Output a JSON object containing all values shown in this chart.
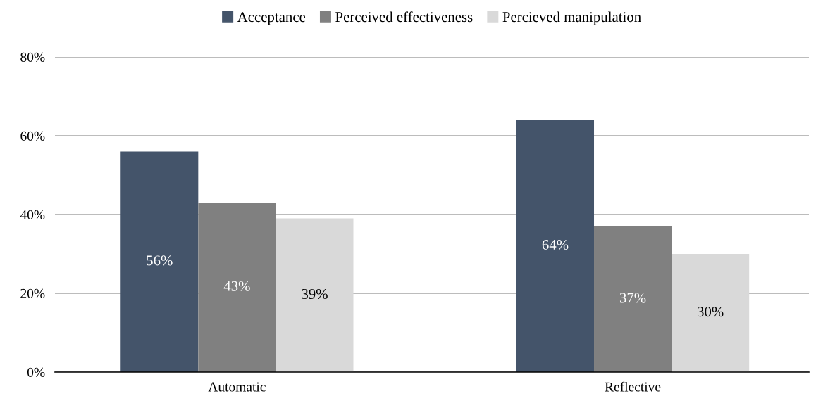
{
  "chart_data": {
    "type": "bar",
    "categories": [
      "Automatic",
      "Reflective"
    ],
    "series": [
      {
        "name": "Acceptance",
        "color": "#44546a",
        "values": [
          56,
          64
        ],
        "value_labels": [
          "56%",
          "64%"
        ]
      },
      {
        "name": "Perceived effectiveness",
        "color": "#808080",
        "values": [
          43,
          37
        ],
        "value_labels": [
          "43%",
          "37%"
        ]
      },
      {
        "name": "Percieved manipulation",
        "color": "#d9d9d9",
        "values": [
          39,
          30
        ],
        "value_labels": [
          "39%",
          "30%"
        ]
      }
    ],
    "ylim": [
      0,
      80
    ],
    "yticks": [
      {
        "value": 0,
        "label": "0%"
      },
      {
        "value": 20,
        "label": "20%"
      },
      {
        "value": 40,
        "label": "40%"
      },
      {
        "value": 60,
        "label": "60%"
      },
      {
        "value": 80,
        "label": "80%"
      }
    ],
    "grid": "y",
    "legend": "top"
  }
}
